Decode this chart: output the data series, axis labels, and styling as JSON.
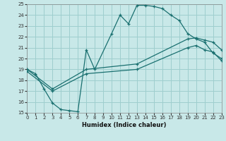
{
  "xlabel": "Humidex (Indice chaleur)",
  "xlim": [
    0,
    23
  ],
  "ylim": [
    15,
    25
  ],
  "yticks": [
    15,
    16,
    17,
    18,
    19,
    20,
    21,
    22,
    23,
    24,
    25
  ],
  "xticks": [
    0,
    1,
    2,
    3,
    4,
    5,
    6,
    7,
    8,
    9,
    10,
    11,
    12,
    13,
    14,
    15,
    16,
    17,
    18,
    19,
    20,
    21,
    22,
    23
  ],
  "bg_color": "#c8e8e8",
  "grid_color": "#9ecece",
  "line_color": "#1a7070",
  "lines": [
    {
      "x": [
        0,
        1,
        2,
        3,
        4,
        5,
        6,
        7,
        8,
        10,
        11,
        12,
        13,
        14,
        15,
        16,
        17,
        18,
        19,
        20,
        21,
        22,
        23
      ],
      "y": [
        19.0,
        18.6,
        17.2,
        15.9,
        15.3,
        15.2,
        15.1,
        20.8,
        19.0,
        22.3,
        24.0,
        23.2,
        24.9,
        24.9,
        24.8,
        24.6,
        24.0,
        23.5,
        22.3,
        21.8,
        21.5,
        20.5,
        20.0
      ]
    },
    {
      "x": [
        0,
        3,
        7,
        13,
        19,
        20,
        21,
        22,
        23
      ],
      "y": [
        19.0,
        17.2,
        19.0,
        19.5,
        21.8,
        21.9,
        21.7,
        21.5,
        20.8
      ]
    },
    {
      "x": [
        0,
        3,
        7,
        13,
        19,
        20,
        21,
        22,
        23
      ],
      "y": [
        18.8,
        17.0,
        18.6,
        19.0,
        21.0,
        21.2,
        20.8,
        20.6,
        19.8
      ]
    }
  ]
}
